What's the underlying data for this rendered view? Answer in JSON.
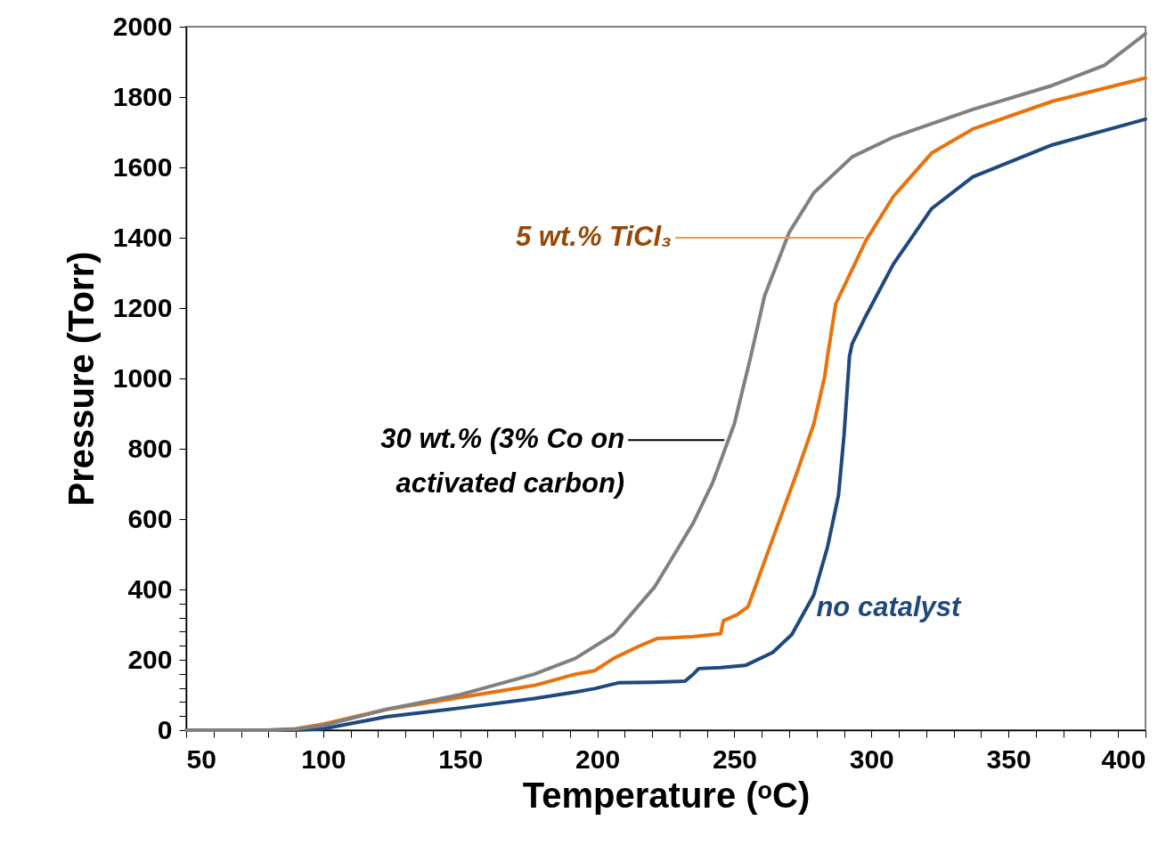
{
  "chart_data": {
    "type": "line",
    "xlabel": "Temperature (ᵒC)",
    "ylabel": "Pressure (Torr)",
    "xlim": [
      50,
      400
    ],
    "ylim": [
      0,
      2000
    ],
    "xticks": [
      50,
      {
        "value": 60,
        "label": null
      },
      {
        "value": 70,
        "label": null
      },
      {
        "value": 80,
        "label": null
      },
      {
        "value": 90,
        "label": null
      },
      100,
      {
        "value": 110,
        "label": null
      },
      {
        "value": 120,
        "label": null
      },
      {
        "value": 130,
        "label": null
      },
      {
        "value": 140,
        "label": null
      },
      150,
      {
        "value": 160,
        "label": null
      },
      {
        "value": 170,
        "label": null
      },
      {
        "value": 180,
        "label": null
      },
      {
        "value": 190,
        "label": null
      },
      200,
      {
        "value": 210,
        "label": null
      },
      {
        "value": 220,
        "label": null
      },
      {
        "value": 230,
        "label": null
      },
      {
        "value": 240,
        "label": null
      },
      250,
      {
        "value": 260,
        "label": null
      },
      {
        "value": 270,
        "label": null
      },
      {
        "value": 280,
        "label": null
      },
      {
        "value": 290,
        "label": null
      },
      300,
      {
        "value": 310,
        "label": null
      },
      {
        "value": 320,
        "label": null
      },
      {
        "value": 330,
        "label": null
      },
      {
        "value": 340,
        "label": null
      },
      350,
      {
        "value": 360,
        "label": null
      },
      {
        "value": 370,
        "label": null
      },
      {
        "value": 380,
        "label": null
      },
      {
        "value": 390,
        "label": null
      },
      400
    ],
    "yticks": [
      0,
      {
        "value": 40,
        "label": null
      },
      {
        "value": 80,
        "label": null
      },
      {
        "value": 120,
        "label": null
      },
      {
        "value": 160,
        "label": null
      },
      200,
      {
        "value": 240,
        "label": null
      },
      {
        "value": 280,
        "label": null
      },
      {
        "value": 320,
        "label": null
      },
      {
        "value": 360,
        "label": null
      },
      400,
      600,
      800,
      1000,
      1200,
      1400,
      1600,
      1800,
      2000
    ],
    "grid": false,
    "legend": false,
    "marker": "none",
    "line_style": "solid",
    "series": [
      {
        "color": "#1f497d",
        "x": [
          50,
          80,
          90,
          100,
          123,
          150,
          177,
          192,
          199,
          208,
          220,
          232,
          235,
          237,
          245,
          254,
          264,
          271,
          279,
          284,
          288,
          290,
          292,
          293,
          298,
          308,
          322,
          337,
          366,
          400
        ],
        "values": [
          0,
          0,
          0,
          4,
          38,
          63,
          90,
          108,
          118,
          135,
          136,
          139,
          159,
          175,
          178,
          184,
          221,
          272,
          385,
          521,
          668,
          837,
          1063,
          1099,
          1178,
          1325,
          1483,
          1573,
          1664,
          1737
        ]
      },
      {
        "color": "#e8720c",
        "x": [
          50,
          80,
          90,
          100,
          123,
          150,
          177,
          192,
          199,
          206,
          215,
          222,
          235,
          245,
          246,
          251,
          255,
          264,
          273,
          279,
          283,
          284,
          287,
          298,
          308,
          322,
          337,
          366,
          400
        ],
        "values": [
          0,
          0,
          4,
          17,
          59,
          93,
          127,
          159,
          169,
          204,
          238,
          261,
          266,
          274,
          311,
          328,
          351,
          544,
          736,
          871,
          1007,
          1063,
          1212,
          1392,
          1517,
          1641,
          1709,
          1788,
          1854
        ]
      },
      {
        "color": "#808080",
        "x": [
          50,
          80,
          90,
          100,
          123,
          150,
          177,
          192,
          206,
          221,
          235,
          242,
          250,
          256,
          261,
          270,
          279,
          293,
          308,
          337,
          366,
          385,
          400
        ],
        "values": [
          0,
          0,
          3,
          13,
          59,
          101,
          159,
          204,
          272,
          408,
          589,
          702,
          871,
          1063,
          1234,
          1415,
          1528,
          1630,
          1686,
          1765,
          1833,
          1890,
          1980
        ]
      }
    ],
    "annotations": [
      {
        "text": "5 wt.% TiCl₃",
        "x": 298,
        "y": 1400
      },
      {
        "text": "30 wt.% (3% Co on\nactivated carbon)",
        "x": 247,
        "y": 825
      },
      {
        "text": "no catalyst",
        "x": 276,
        "y": 347
      }
    ]
  }
}
